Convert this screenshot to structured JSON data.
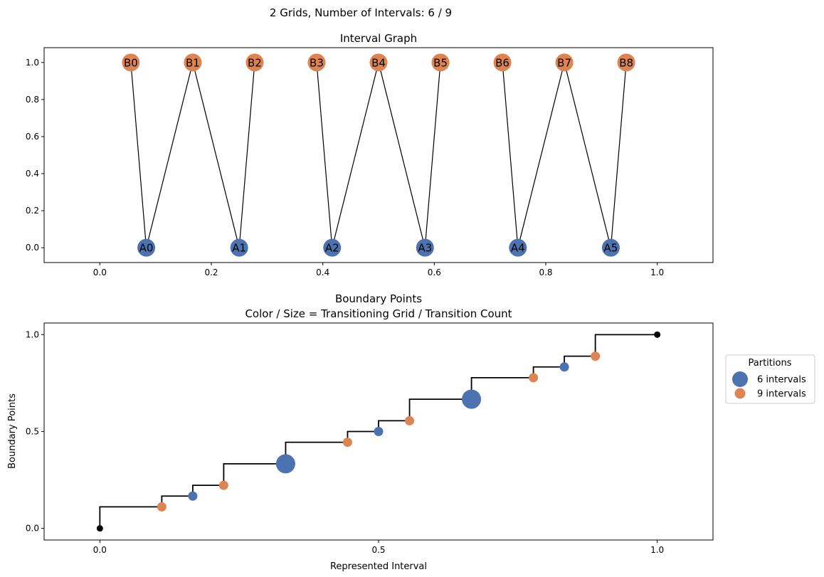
{
  "figure": {
    "suptitle": "2 Grids, Number of Intervals: 6 / 9"
  },
  "colors": {
    "grid_a": "#4c72b0",
    "grid_b": "#dd8452",
    "edge": "#000000",
    "endpoint": "#000000"
  },
  "chart_data": [
    {
      "type": "graph",
      "title": "Interval Graph",
      "xlim": [
        -0.1,
        1.1
      ],
      "ylim": [
        -0.08,
        1.08
      ],
      "xticks": [
        0.0,
        0.2,
        0.4,
        0.6,
        0.8,
        1.0
      ],
      "xtick_labels": [
        "0.0",
        "0.2",
        "0.4",
        "0.6",
        "0.8",
        "1.0"
      ],
      "yticks": [
        0.0,
        0.2,
        0.4,
        0.6,
        0.8,
        1.0
      ],
      "ytick_labels": [
        "0.0",
        "0.2",
        "0.4",
        "0.6",
        "0.8",
        "1.0"
      ],
      "nodes": [
        {
          "id": "A0",
          "label": "A0",
          "grid": "a",
          "x": 0.0833,
          "y": 0
        },
        {
          "id": "A1",
          "label": "A1",
          "grid": "a",
          "x": 0.25,
          "y": 0
        },
        {
          "id": "A2",
          "label": "A2",
          "grid": "a",
          "x": 0.4167,
          "y": 0
        },
        {
          "id": "A3",
          "label": "A3",
          "grid": "a",
          "x": 0.5833,
          "y": 0
        },
        {
          "id": "A4",
          "label": "A4",
          "grid": "a",
          "x": 0.75,
          "y": 0
        },
        {
          "id": "A5",
          "label": "A5",
          "grid": "a",
          "x": 0.9167,
          "y": 0
        },
        {
          "id": "B0",
          "label": "B0",
          "grid": "b",
          "x": 0.0556,
          "y": 1
        },
        {
          "id": "B1",
          "label": "B1",
          "grid": "b",
          "x": 0.1667,
          "y": 1
        },
        {
          "id": "B2",
          "label": "B2",
          "grid": "b",
          "x": 0.2778,
          "y": 1
        },
        {
          "id": "B3",
          "label": "B3",
          "grid": "b",
          "x": 0.3889,
          "y": 1
        },
        {
          "id": "B4",
          "label": "B4",
          "grid": "b",
          "x": 0.5,
          "y": 1
        },
        {
          "id": "B5",
          "label": "B5",
          "grid": "b",
          "x": 0.6111,
          "y": 1
        },
        {
          "id": "B6",
          "label": "B6",
          "grid": "b",
          "x": 0.7222,
          "y": 1
        },
        {
          "id": "B7",
          "label": "B7",
          "grid": "b",
          "x": 0.8333,
          "y": 1
        },
        {
          "id": "B8",
          "label": "B8",
          "grid": "b",
          "x": 0.9444,
          "y": 1
        }
      ],
      "edges": [
        [
          "B0",
          "A0"
        ],
        [
          "A0",
          "B1"
        ],
        [
          "B1",
          "A1"
        ],
        [
          "A1",
          "B2"
        ],
        [
          "B3",
          "A2"
        ],
        [
          "A2",
          "B4"
        ],
        [
          "B4",
          "A3"
        ],
        [
          "A3",
          "B5"
        ],
        [
          "B6",
          "A4"
        ],
        [
          "A4",
          "B7"
        ],
        [
          "B7",
          "A5"
        ],
        [
          "A5",
          "B8"
        ]
      ]
    },
    {
      "type": "scatter",
      "title": "Boundary Points",
      "subtitle": "Color / Size = Transitioning Grid / Transition Count",
      "xlabel": "Represented Interval",
      "ylabel": "Boundary Points",
      "xlim": [
        -0.1,
        1.1
      ],
      "ylim": [
        -0.06,
        1.06
      ],
      "xticks": [
        0.0,
        0.5,
        1.0
      ],
      "xtick_labels": [
        "0.0",
        "0.5",
        "1.0"
      ],
      "yticks": [
        0.0,
        0.5,
        1.0
      ],
      "ytick_labels": [
        "0.0",
        "0.5",
        "1.0"
      ],
      "endpoints": [
        {
          "x": 0.0,
          "y": 0.0
        },
        {
          "x": 1.0,
          "y": 1.0
        }
      ],
      "step_points": [
        {
          "x": 0.0,
          "y": 0.0
        },
        {
          "x": 0.1111,
          "y": 0.1111
        },
        {
          "x": 0.1667,
          "y": 0.1667
        },
        {
          "x": 0.2222,
          "y": 0.2222
        },
        {
          "x": 0.3333,
          "y": 0.3333
        },
        {
          "x": 0.4444,
          "y": 0.4444
        },
        {
          "x": 0.5,
          "y": 0.5
        },
        {
          "x": 0.5556,
          "y": 0.5556
        },
        {
          "x": 0.6667,
          "y": 0.6667
        },
        {
          "x": 0.7778,
          "y": 0.7778
        },
        {
          "x": 0.8333,
          "y": 0.8333
        },
        {
          "x": 0.8889,
          "y": 0.8889
        },
        {
          "x": 1.0,
          "y": 1.0
        }
      ],
      "series": [
        {
          "name": "6 intervals",
          "grid": "a",
          "points": [
            {
              "x": 0.1667,
              "y": 0.1667,
              "count": 1
            },
            {
              "x": 0.3333,
              "y": 0.3333,
              "count": 2
            },
            {
              "x": 0.5,
              "y": 0.5,
              "count": 1
            },
            {
              "x": 0.6667,
              "y": 0.6667,
              "count": 2
            },
            {
              "x": 0.8333,
              "y": 0.8333,
              "count": 1
            }
          ]
        },
        {
          "name": "9 intervals",
          "grid": "b",
          "points": [
            {
              "x": 0.1111,
              "y": 0.1111,
              "count": 1
            },
            {
              "x": 0.2222,
              "y": 0.2222,
              "count": 1
            },
            {
              "x": 0.4444,
              "y": 0.4444,
              "count": 1
            },
            {
              "x": 0.5556,
              "y": 0.5556,
              "count": 1
            },
            {
              "x": 0.7778,
              "y": 0.7778,
              "count": 1
            },
            {
              "x": 0.8889,
              "y": 0.8889,
              "count": 1
            }
          ]
        }
      ],
      "legend": {
        "title": "Partitions",
        "placement": "right",
        "entries": [
          {
            "label": "6 intervals",
            "grid": "a"
          },
          {
            "label": "9 intervals",
            "grid": "b"
          }
        ]
      }
    }
  ]
}
